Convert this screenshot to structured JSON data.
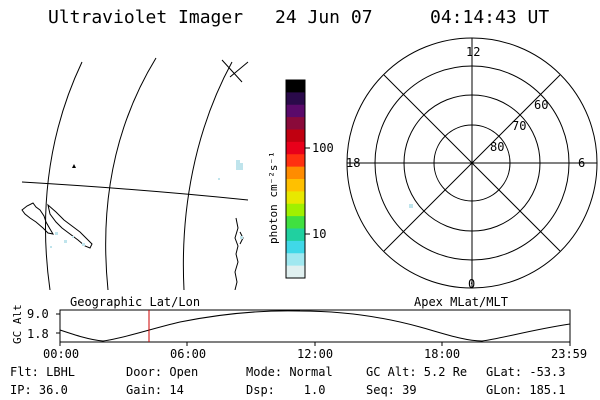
{
  "header": {
    "instrument": "Ultraviolet Imager",
    "date": "24 Jun 07",
    "time": "04:14:43 UT"
  },
  "colorbar": {
    "label": "photon cm⁻²s⁻¹",
    "ticks": [
      "100",
      "10"
    ],
    "colors": [
      "#000000",
      "#2a0a4a",
      "#5a0a6a",
      "#8a0a3a",
      "#c00010",
      "#e8001a",
      "#ff3010",
      "#ff8c00",
      "#ffc000",
      "#e8e800",
      "#a0f000",
      "#40e040",
      "#20d0a0",
      "#40d8e8",
      "#a0e8f0",
      "#e0f0f0"
    ]
  },
  "polar_plot": {
    "mlt_labels": [
      "12",
      "18",
      "6",
      "0"
    ],
    "lat_labels": [
      "60",
      "70",
      "80"
    ]
  },
  "timeline": {
    "title_left": "Geographic Lat/Lon",
    "title_right": "Apex MLat/MLT",
    "y_axis_label": "GC Alt",
    "y_ticks": [
      "9.0",
      "1.8"
    ],
    "x_ticks": [
      "00:00",
      "06:00",
      "12:00",
      "18:00",
      "23:59"
    ],
    "current_time_marker_color": "#cc0000"
  },
  "status": {
    "row1": {
      "flt": "Flt: LBHL",
      "door": "Door: Open",
      "mode": "Mode: Normal",
      "gc_alt": "GC Alt: 5.2 Re",
      "glat": "GLat: -53.3"
    },
    "row2": {
      "ip": "IP: 36.0",
      "gain": "Gain: 14",
      "dsp": "Dsp:    1.0",
      "seq": "Seq: 39",
      "glon": "GLon: 185.1"
    }
  }
}
